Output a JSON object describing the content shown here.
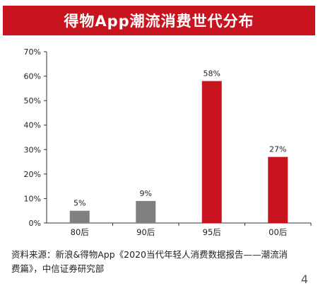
{
  "title": "得物App潮流消费世代分布",
  "source_line1": "资料来源：新浪&得物App《2020当代年轻人消费数据报告——潮流消",
  "source_line2": "费篇》，中信证券研究部",
  "page_number": "4",
  "colors": {
    "title_bg": "#c8141e",
    "gray": "#808080",
    "red": "#c8141e"
  },
  "chart_data": {
    "type": "bar",
    "categories": [
      "80后",
      "90后",
      "95后",
      "00后"
    ],
    "values": [
      5,
      9,
      58,
      27
    ],
    "value_labels": [
      "5%",
      "9%",
      "58%",
      "27%"
    ],
    "bar_colors": [
      "#808080",
      "#808080",
      "#c8141e",
      "#c8141e"
    ],
    "y_ticks": [
      "0%",
      "10%",
      "20%",
      "30%",
      "40%",
      "50%",
      "60%",
      "70%"
    ],
    "ylim": [
      0,
      70
    ],
    "y_unit": "%",
    "grid": false
  }
}
